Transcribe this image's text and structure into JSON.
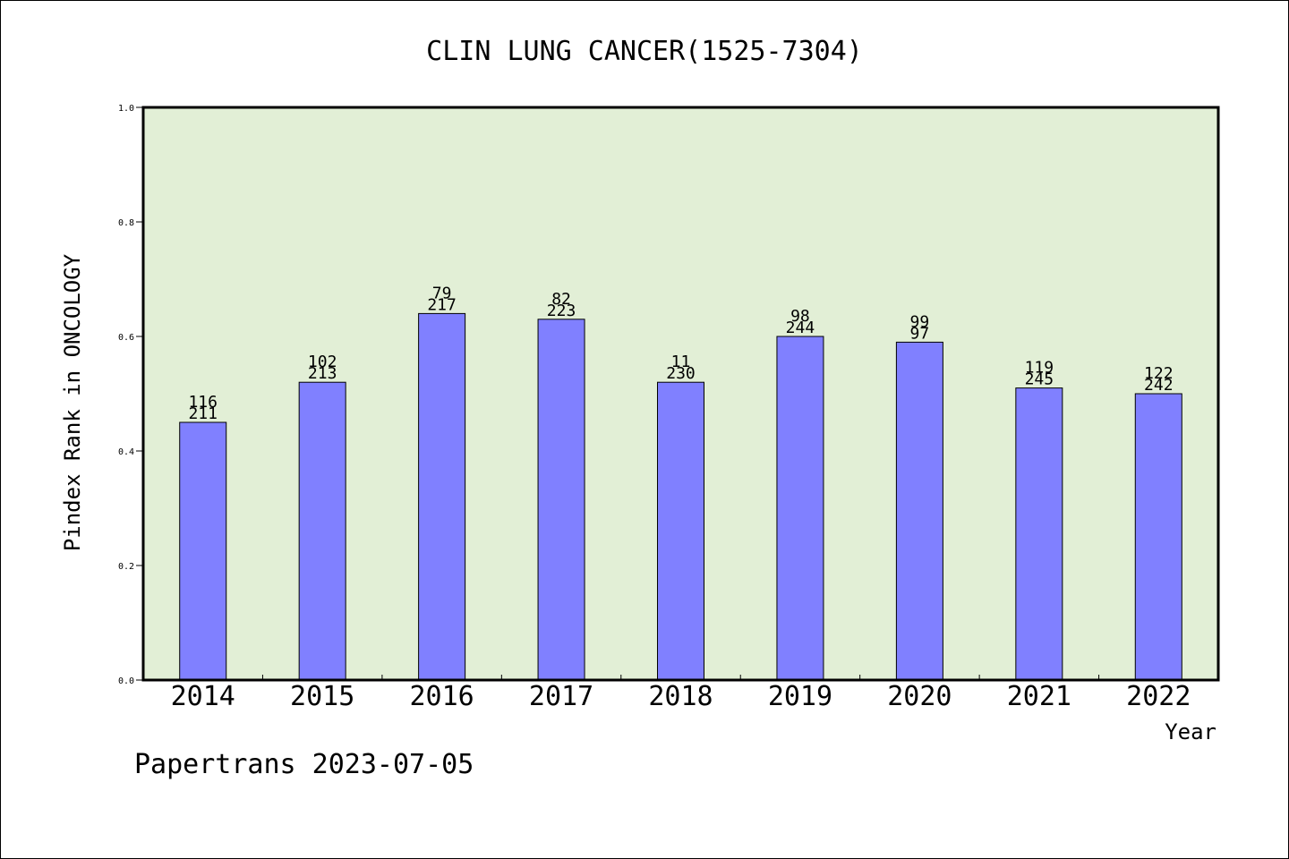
{
  "colors": {
    "plot_background": "#e2efd6",
    "bar_fill": "#8080ff",
    "bar_stroke": "#000000"
  },
  "footer": "Papertrans 2023-07-05",
  "chart_data": {
    "type": "bar",
    "title": "CLIN LUNG CANCER(1525-7304)",
    "xlabel": "Year",
    "ylabel": "Pindex Rank in ONCOLOGY",
    "ylim": [
      0,
      1.0
    ],
    "yticks": [
      "0.0",
      "0.2",
      "0.4",
      "0.6",
      "0.8",
      "1.0"
    ],
    "grid": false,
    "categories": [
      "2014",
      "2015",
      "2016",
      "2017",
      "2018",
      "2019",
      "2020",
      "2021",
      "2022"
    ],
    "values": [
      0.45,
      0.52,
      0.64,
      0.63,
      0.52,
      0.6,
      0.59,
      0.51,
      0.5
    ],
    "labels_top": [
      "116",
      "102",
      "79",
      "82",
      "11",
      "98",
      "99",
      "119",
      "122"
    ],
    "labels_bottom": [
      "211",
      "213",
      "217",
      "223",
      "230",
      "244",
      "97",
      "245",
      "242"
    ]
  }
}
